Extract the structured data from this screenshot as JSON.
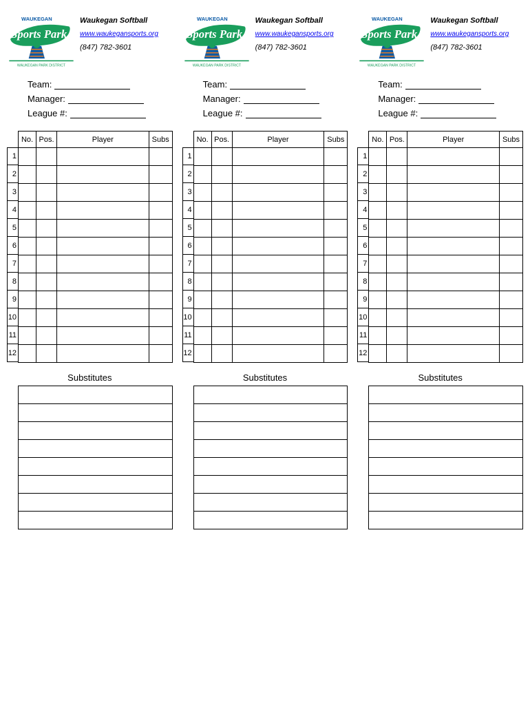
{
  "logo": {
    "top_text": "WAUKEGAN",
    "script_text": "Sports Park",
    "bottom_text": "WAUKEGAN PARK DISTRICT",
    "green": "#1a9e5c",
    "blue": "#0b5aa6",
    "orange": "#d9782d"
  },
  "header": {
    "title": "Waukegan Softball",
    "link_text": "www.waukegansports.org",
    "link_color": "#0000ee",
    "phone": "(847) 782-3601"
  },
  "fields": {
    "team_label": "Team:",
    "manager_label": "Manager:",
    "league_label": "League #:"
  },
  "roster": {
    "headers": {
      "no": "No.",
      "pos": "Pos.",
      "player": "Player",
      "subs": "Subs"
    },
    "row_numbers": [
      "1",
      "2",
      "3",
      "4",
      "5",
      "6",
      "7",
      "8",
      "9",
      "10",
      "11",
      "12"
    ]
  },
  "substitutes": {
    "title": "Substitutes",
    "row_count": 8
  },
  "card_count": 3
}
